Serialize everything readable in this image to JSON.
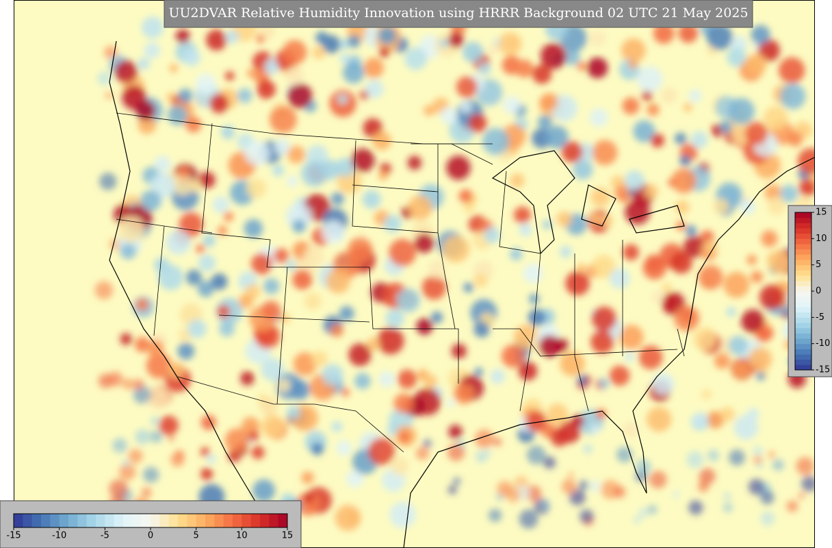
{
  "title": "UU2DVAR Relative Humidity Innovation using HRRR Background 02 UTC 21 May 2025",
  "colorbar": {
    "lim": [
      -15,
      15
    ],
    "ticks": [
      -15,
      -10,
      -5,
      0,
      5,
      10,
      15
    ],
    "colors": [
      "#313695",
      "#4575b4",
      "#74add1",
      "#abd9e9",
      "#e0f3f8",
      "#f7f7f0",
      "#fee090",
      "#fdae61",
      "#f46d43",
      "#d73027",
      "#a50026"
    ]
  }
}
